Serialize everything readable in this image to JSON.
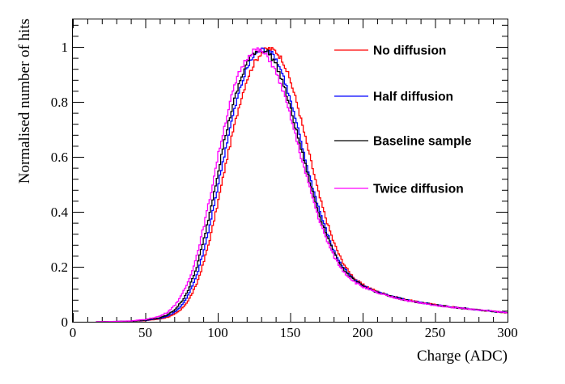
{
  "chart_data": {
    "type": "line",
    "title": "",
    "xlabel": "Charge (ADC)",
    "ylabel": "Normalised number of hits",
    "xlim": [
      0,
      300
    ],
    "ylim": [
      0,
      1.1
    ],
    "grid": false,
    "legend_position": "top-right",
    "x_ticks": [
      "0",
      "50",
      "100",
      "150",
      "200",
      "250",
      "300"
    ],
    "y_ticks": [
      "0",
      "0.2",
      "0.4",
      "0.6",
      "0.8",
      "1"
    ],
    "x": [
      0,
      20,
      40,
      50,
      60,
      65,
      70,
      75,
      80,
      85,
      90,
      95,
      100,
      105,
      110,
      115,
      120,
      125,
      130,
      135,
      140,
      145,
      150,
      155,
      160,
      165,
      170,
      175,
      180,
      185,
      190,
      195,
      200,
      210,
      220,
      230,
      240,
      250,
      260,
      270,
      280,
      290,
      300
    ],
    "series": [
      {
        "name": "No diffusion",
        "color": "#ff0000",
        "values": [
          0,
          0,
          0.002,
          0.004,
          0.01,
          0.016,
          0.026,
          0.045,
          0.08,
          0.13,
          0.21,
          0.31,
          0.43,
          0.56,
          0.68,
          0.79,
          0.88,
          0.94,
          0.98,
          0.995,
          0.985,
          0.95,
          0.88,
          0.79,
          0.68,
          0.57,
          0.46,
          0.37,
          0.29,
          0.23,
          0.185,
          0.155,
          0.135,
          0.11,
          0.093,
          0.08,
          0.07,
          0.062,
          0.055,
          0.049,
          0.043,
          0.038,
          0.033
        ]
      },
      {
        "name": "Half diffusion",
        "color": "#0000ff",
        "values": [
          0,
          0,
          0.002,
          0.005,
          0.012,
          0.02,
          0.034,
          0.058,
          0.1,
          0.16,
          0.25,
          0.36,
          0.49,
          0.62,
          0.74,
          0.84,
          0.92,
          0.97,
          0.99,
          0.99,
          0.96,
          0.9,
          0.81,
          0.71,
          0.6,
          0.5,
          0.41,
          0.33,
          0.26,
          0.21,
          0.175,
          0.15,
          0.132,
          0.108,
          0.092,
          0.08,
          0.07,
          0.062,
          0.055,
          0.049,
          0.043,
          0.038,
          0.033
        ]
      },
      {
        "name": "Baseline sample",
        "color": "#000000",
        "values": [
          0,
          0,
          0.002,
          0.006,
          0.014,
          0.024,
          0.042,
          0.072,
          0.12,
          0.19,
          0.29,
          0.41,
          0.54,
          0.67,
          0.78,
          0.87,
          0.94,
          0.98,
          0.99,
          0.98,
          0.94,
          0.87,
          0.78,
          0.68,
          0.58,
          0.48,
          0.39,
          0.32,
          0.25,
          0.205,
          0.17,
          0.147,
          0.13,
          0.107,
          0.091,
          0.079,
          0.069,
          0.061,
          0.054,
          0.048,
          0.043,
          0.038,
          0.033
        ]
      },
      {
        "name": "Twice diffusion",
        "color": "#ff00ff",
        "values": [
          0,
          0,
          0.003,
          0.008,
          0.02,
          0.034,
          0.058,
          0.095,
          0.15,
          0.23,
          0.34,
          0.46,
          0.6,
          0.72,
          0.83,
          0.91,
          0.96,
          0.99,
          0.985,
          0.96,
          0.91,
          0.84,
          0.75,
          0.65,
          0.55,
          0.46,
          0.37,
          0.3,
          0.24,
          0.195,
          0.165,
          0.143,
          0.127,
          0.105,
          0.09,
          0.078,
          0.068,
          0.06,
          0.054,
          0.048,
          0.043,
          0.038,
          0.033
        ]
      }
    ]
  }
}
